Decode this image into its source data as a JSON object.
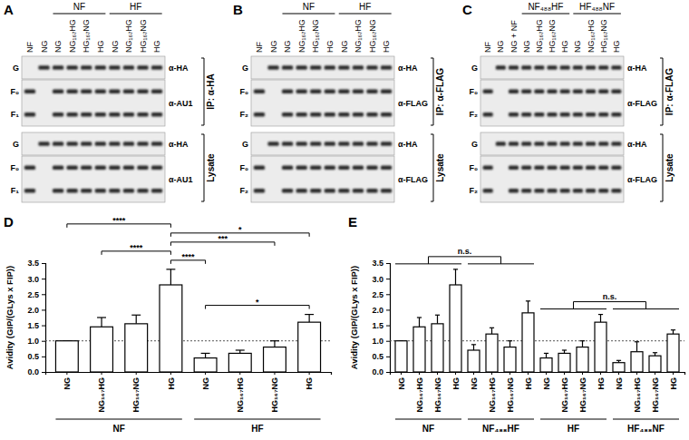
{
  "chart_data": [
    {
      "type": "bar",
      "panel_label": "D",
      "y_label": "Avidity (GIP/(GLys x FIP))",
      "categories": [
        "NG",
        "NG₁₆₇HG",
        "HG₁₆₇NG",
        "HG",
        "NG",
        "NG₁₆₇HG",
        "HG₁₆₇NG",
        "HG"
      ],
      "group_labels": [
        "NF",
        "HF"
      ],
      "values": [
        1.0,
        1.45,
        1.55,
        2.8,
        0.45,
        0.6,
        0.8,
        1.6
      ],
      "errors": [
        0,
        0.3,
        0.28,
        0.5,
        0.15,
        0.1,
        0.2,
        0.25
      ],
      "color": "#ffffff",
      "ylim": [
        0,
        3.5
      ],
      "yticks": [
        {
          "value": 0,
          "label": "0.0"
        },
        {
          "value": 0.5,
          "label": "0.5"
        },
        {
          "value": 1,
          "label": "1.0"
        },
        {
          "value": 1.5,
          "label": "1.5"
        },
        {
          "value": 2,
          "label": "2.0"
        },
        {
          "value": 2.5,
          "label": "2.5"
        },
        {
          "value": 3,
          "label": "3.0"
        },
        {
          "value": 3.5,
          "label": "3.5"
        }
      ],
      "reference": 1,
      "annotations": [
        {
          "from": 0,
          "to": 3,
          "text": "****"
        },
        {
          "from": 3,
          "to": 7,
          "text": "*"
        },
        {
          "from": 3,
          "to": 6,
          "text": "***"
        },
        {
          "from": 1,
          "to": 3,
          "text": "****"
        },
        {
          "from": 3,
          "to": 4,
          "text": "****"
        },
        {
          "from": 4,
          "to": 7,
          "text": "*"
        }
      ]
    },
    {
      "type": "bar",
      "panel_label": "E",
      "y_label": "Avidity (GIP/(GLys x FIP))",
      "categories": [
        "NG",
        "NG₁₆₇HG",
        "HG₁₆₇NG",
        "HG",
        "NG",
        "NG₁₆₇HG",
        "HG₁₆₇NG",
        "HG",
        "NG",
        "NG₁₆₇HG",
        "HG₁₆₇NG",
        "HG",
        "NG",
        "NG₁₆₇HG",
        "HG₁₆₇NG",
        "HG"
      ],
      "group_labels": [
        "NF",
        "NF₄₈₈HF",
        "HF",
        "HF₄₈₈NF"
      ],
      "values": [
        1.0,
        1.45,
        1.55,
        2.8,
        0.7,
        1.22,
        0.8,
        1.9,
        0.45,
        0.6,
        0.8,
        1.6,
        0.3,
        0.65,
        0.52,
        1.22
      ],
      "errors": [
        0,
        0.3,
        0.28,
        0.5,
        0.18,
        0.2,
        0.2,
        0.38,
        0.15,
        0.1,
        0.2,
        0.25,
        0.07,
        0.32,
        0.1,
        0.13
      ],
      "color": "#ffffff",
      "ylim": [
        0,
        3.5
      ],
      "yticks": [
        {
          "value": 0,
          "label": "0.0"
        },
        {
          "value": 0.5,
          "label": "0.5"
        },
        {
          "value": 1,
          "label": "1.0"
        },
        {
          "value": 1.5,
          "label": "1.5"
        },
        {
          "value": 2,
          "label": "2.0"
        },
        {
          "value": 2.5,
          "label": "2.5"
        },
        {
          "value": 3,
          "label": "3.0"
        },
        {
          "value": 3.5,
          "label": "3.5"
        }
      ],
      "reference": 1,
      "group_annotations": [
        {
          "from": 0,
          "to": 1,
          "text": "n.s."
        },
        {
          "from": 2,
          "to": 3,
          "text": "n.s."
        }
      ]
    }
  ],
  "blots": [
    {
      "panel_label": "A",
      "lanes": [
        "NF",
        "NG"
      ],
      "groups": [
        {
          "label": "NF",
          "lanes": [
            "NG",
            "NG₁₆₇HG",
            "HG₁₆₇NG",
            "HG"
          ]
        },
        {
          "label": "HF",
          "lanes": [
            "NG",
            "NG₁₆₇HG",
            "HG₁₆₇NG",
            "HG"
          ]
        }
      ],
      "sections": [
        {
          "title": "IP: α-HA",
          "strips": [
            {
              "antibody": "α-HA",
              "bands": [
                "G"
              ]
            },
            {
              "antibody": "α-AU1",
              "bands": [
                "F₀",
                "F₁"
              ]
            }
          ]
        },
        {
          "title": "Lysate",
          "strips": [
            {
              "antibody": "α-HA",
              "bands": [
                "G"
              ]
            },
            {
              "antibody": "α-AU1",
              "bands": [
                "F₀",
                "F₁"
              ]
            }
          ]
        }
      ]
    },
    {
      "panel_label": "B",
      "lanes": [
        "NF",
        "NG"
      ],
      "groups": [
        {
          "label": "NF",
          "lanes": [
            "NG",
            "NG₁₆₇HG",
            "HG₁₆₇NG",
            "HG"
          ]
        },
        {
          "label": "HF",
          "lanes": [
            "NG",
            "NG₁₆₇HG",
            "HG₁₆₇NG",
            "HG"
          ]
        }
      ],
      "sections": [
        {
          "title": "IP: α-FLAG",
          "strips": [
            {
              "antibody": "α-HA",
              "bands": [
                "G"
              ]
            },
            {
              "antibody": "α-FLAG",
              "bands": [
                "F₀",
                "F₂"
              ]
            }
          ]
        },
        {
          "title": "Lysate",
          "strips": [
            {
              "antibody": "α-HA",
              "bands": [
                "G"
              ]
            },
            {
              "antibody": "α-FLAG",
              "bands": [
                "F₀",
                "F₂"
              ]
            }
          ]
        }
      ]
    },
    {
      "panel_label": "C",
      "lanes": [
        "NF",
        "NG",
        "NG + NF"
      ],
      "groups": [
        {
          "label": "NF₄₈₈HF",
          "lanes": [
            "NG",
            "NG₁₆₇HG",
            "HG₁₆₇NG",
            "HG"
          ]
        },
        {
          "label": "HF₄₈₈NF",
          "lanes": [
            "NG",
            "NG₁₆₇HG",
            "HG₁₆₇NG",
            "HG"
          ]
        }
      ],
      "sections": [
        {
          "title": "IP: α-FLAG",
          "strips": [
            {
              "antibody": "α-HA",
              "bands": [
                "G"
              ]
            },
            {
              "antibody": "α-FLAG",
              "bands": [
                "F₀",
                "F₂"
              ]
            }
          ]
        },
        {
          "title": "Lysate",
          "strips": [
            {
              "antibody": "α-HA",
              "bands": [
                "G"
              ]
            },
            {
              "antibody": "α-FLAG",
              "bands": [
                "F₀",
                "F₂"
              ]
            }
          ]
        }
      ]
    }
  ]
}
